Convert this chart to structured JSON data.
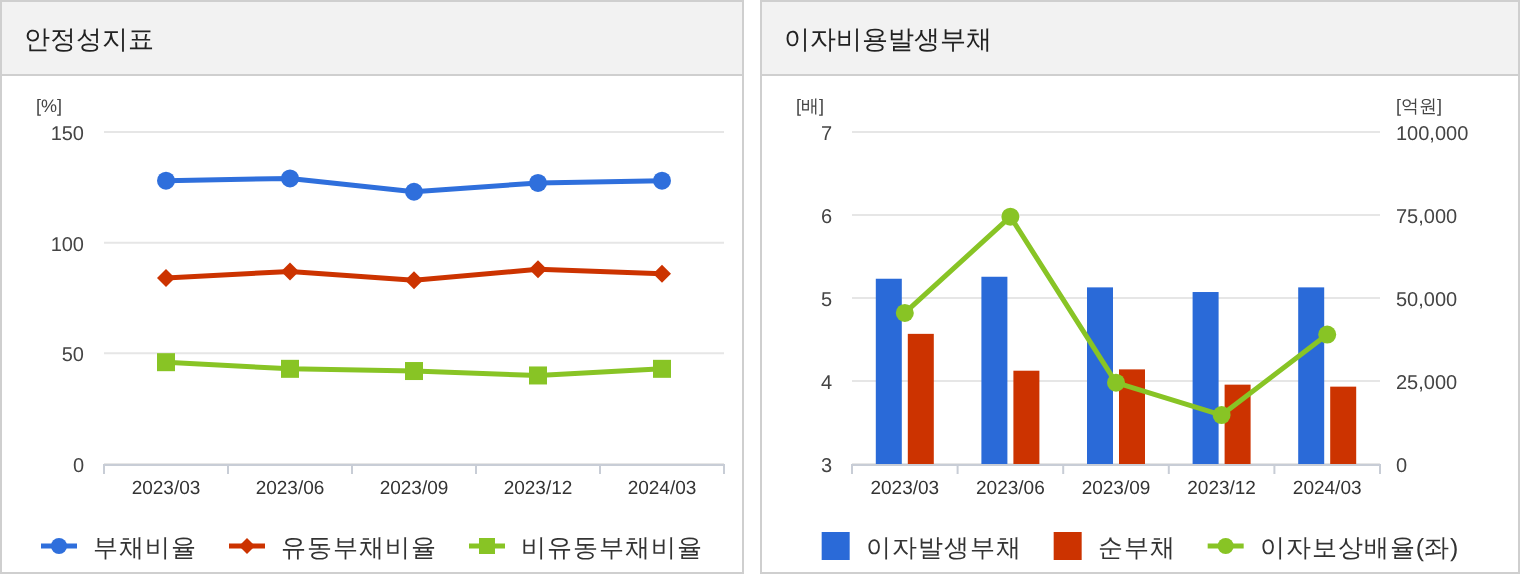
{
  "chart_data": [
    {
      "type": "line",
      "title": "안정성지표",
      "ylabel": "[%]",
      "categories": [
        "2023/03",
        "2023/06",
        "2023/09",
        "2023/12",
        "2024/03"
      ],
      "ylim": [
        0,
        150
      ],
      "yticks": [
        0,
        50,
        100,
        150
      ],
      "grid": "y",
      "legend": "bottom",
      "series": [
        {
          "name": "부채비율",
          "color": "#2f6fdc",
          "marker": "circle",
          "values": [
            128,
            129,
            123,
            127,
            128
          ]
        },
        {
          "name": "유동부채비율",
          "color": "#cc3300",
          "marker": "diamond",
          "values": [
            84,
            87,
            83,
            88,
            86
          ]
        },
        {
          "name": "비유동부채비율",
          "color": "#88c425",
          "marker": "square",
          "values": [
            46,
            43,
            42,
            40,
            43
          ]
        }
      ]
    },
    {
      "type": "bar",
      "title": "이자비용발생부채",
      "ylabel": "[배]",
      "y2label": "[억원]",
      "categories": [
        "2023/03",
        "2023/06",
        "2023/09",
        "2023/12",
        "2024/03"
      ],
      "ylim": [
        3,
        7
      ],
      "yticks": [
        3,
        4,
        5,
        6,
        7
      ],
      "y2lim": [
        0,
        100000
      ],
      "y2ticks": [
        0,
        {
          "value": 25000,
          "label": "25,000"
        },
        {
          "value": 50000,
          "label": "50,000"
        },
        {
          "value": 75000,
          "label": "75,000"
        },
        {
          "value": 100000,
          "label": "100,000"
        }
      ],
      "grid": "y",
      "legend": "bottom",
      "series": [
        {
          "name": "이자발생부채",
          "color": "#2a6ad8",
          "axis": "y2",
          "values": [
            55800,
            56400,
            53200,
            51800,
            53200
          ]
        },
        {
          "name": "순부채",
          "color": "#cc3300",
          "axis": "y2",
          "values": [
            39200,
            28100,
            28500,
            23900,
            23300
          ]
        },
        {
          "name": "이자보상배율(좌)",
          "type": "line",
          "color": "#88c425",
          "marker": "circle",
          "axis": "y",
          "values": [
            4.82,
            5.98,
            3.98,
            3.59,
            4.56
          ]
        }
      ]
    }
  ]
}
